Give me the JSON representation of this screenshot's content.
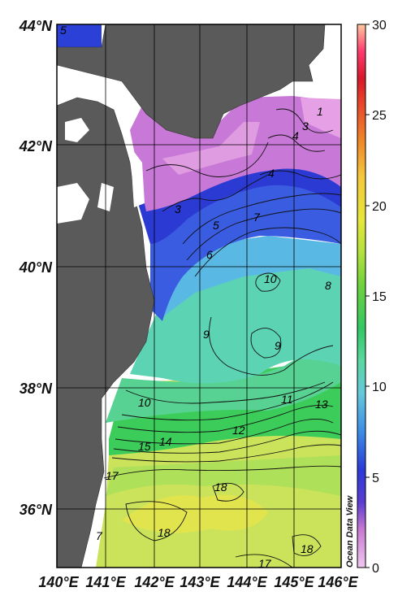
{
  "map": {
    "credit": "Ocean Data View",
    "lat_labels": [
      "44°N",
      "42°N",
      "40°N",
      "38°N",
      "36°N"
    ],
    "lon_labels": [
      "140°E",
      "141°E",
      "142°E",
      "143°E",
      "144°E",
      "145°E",
      "146°E"
    ],
    "colorbar": {
      "ticks": [
        "0",
        "5",
        "10",
        "15",
        "20",
        "25",
        "30"
      ],
      "min": 0,
      "max": 30,
      "colors": [
        "#f0c8f0",
        "#c878d2",
        "#5a3cd2",
        "#2a3ad8",
        "#3c8ce6",
        "#64c8dc",
        "#5ad8a0",
        "#32c864",
        "#6ed23c",
        "#b4e13c",
        "#e6e63c",
        "#f5c83c",
        "#f08c28",
        "#e84a2a",
        "#d8182a",
        "#ff3a6e",
        "#ffc8a0"
      ]
    },
    "contour_labels": [
      "1",
      "3",
      "3",
      "4",
      "4",
      "5",
      "6",
      "7",
      "8",
      "9",
      "9",
      "10",
      "10",
      "11",
      "12",
      "13",
      "14",
      "15",
      "17",
      "18",
      "18",
      "18",
      "17",
      "5",
      "7"
    ]
  }
}
